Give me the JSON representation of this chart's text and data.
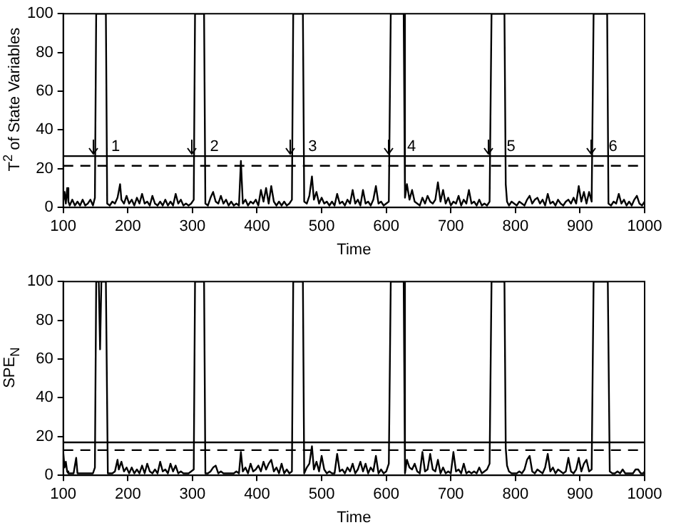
{
  "chart_data": [
    {
      "type": "line",
      "ylabel": "T$^{2}$ of State Variables",
      "xlabel": "Time",
      "xlim": [
        100,
        1000
      ],
      "ylim": [
        0,
        100
      ],
      "xticks": [
        100,
        200,
        300,
        400,
        500,
        600,
        700,
        800,
        900,
        1000
      ],
      "yticks": [
        0,
        20,
        40,
        60,
        80,
        100
      ],
      "x": [
        100,
        102,
        104,
        106,
        108,
        110,
        114,
        118,
        122,
        126,
        130,
        134,
        138,
        142,
        146,
        149,
        151,
        166,
        168,
        172,
        176,
        180,
        184,
        188,
        190,
        194,
        198,
        202,
        206,
        210,
        214,
        218,
        222,
        226,
        230,
        234,
        238,
        242,
        246,
        250,
        254,
        258,
        262,
        266,
        270,
        274,
        278,
        282,
        286,
        290,
        294,
        298,
        302,
        304,
        318,
        320,
        324,
        328,
        332,
        336,
        340,
        344,
        348,
        352,
        356,
        360,
        364,
        368,
        372,
        375,
        378,
        382,
        386,
        390,
        394,
        398,
        402,
        406,
        410,
        414,
        418,
        422,
        426,
        430,
        434,
        438,
        442,
        446,
        450,
        454,
        456,
        471,
        473,
        477,
        481,
        485,
        488,
        492,
        496,
        500,
        504,
        508,
        512,
        516,
        520,
        524,
        528,
        532,
        536,
        540,
        544,
        548,
        552,
        556,
        560,
        564,
        568,
        572,
        576,
        580,
        584,
        588,
        592,
        596,
        600,
        604,
        607,
        627,
        629,
        632,
        636,
        640,
        644,
        648,
        652,
        656,
        660,
        664,
        668,
        672,
        676,
        680,
        684,
        688,
        692,
        696,
        700,
        704,
        708,
        712,
        716,
        720,
        724,
        728,
        732,
        736,
        740,
        744,
        748,
        752,
        756,
        760,
        763,
        783,
        785,
        787,
        790,
        794,
        798,
        802,
        806,
        810,
        814,
        818,
        822,
        826,
        830,
        834,
        838,
        842,
        846,
        850,
        854,
        858,
        862,
        866,
        870,
        874,
        878,
        882,
        886,
        890,
        894,
        898,
        902,
        906,
        910,
        914,
        918,
        921,
        942,
        944,
        948,
        952,
        956,
        960,
        964,
        968,
        972,
        976,
        980,
        984,
        988,
        992,
        996,
        1000
      ],
      "series": [
        {
          "color": "#000000",
          "values": [
            3,
            8,
            2,
            10,
            3,
            1,
            4,
            1,
            3,
            1,
            4,
            1,
            2,
            4,
            1,
            5,
            100,
            100,
            2,
            1,
            3,
            2,
            5,
            12,
            4,
            2,
            6,
            2,
            4,
            1,
            5,
            2,
            7,
            2,
            3,
            1,
            6,
            2,
            1,
            3,
            1,
            4,
            1,
            3,
            1,
            7,
            2,
            4,
            1,
            2,
            1,
            2,
            4,
            100,
            100,
            2,
            1,
            5,
            8,
            3,
            2,
            6,
            2,
            4,
            1,
            3,
            1,
            2,
            1,
            24,
            2,
            4,
            1,
            3,
            2,
            4,
            1,
            9,
            3,
            10,
            2,
            11,
            3,
            1,
            3,
            1,
            3,
            1,
            2,
            4,
            100,
            100,
            3,
            2,
            6,
            16,
            4,
            8,
            2,
            5,
            2,
            3,
            1,
            3,
            1,
            7,
            2,
            3,
            1,
            4,
            2,
            9,
            2,
            4,
            1,
            9,
            2,
            3,
            1,
            4,
            11,
            2,
            3,
            1,
            2,
            3,
            100,
            100,
            5,
            12,
            4,
            9,
            3,
            2,
            1,
            5,
            2,
            6,
            3,
            2,
            4,
            13,
            3,
            9,
            2,
            5,
            1,
            3,
            2,
            6,
            1,
            4,
            2,
            9,
            2,
            3,
            1,
            4,
            1,
            2,
            1,
            3,
            100,
            100,
            12,
            3,
            1,
            3,
            2,
            1,
            3,
            2,
            1,
            4,
            6,
            2,
            4,
            5,
            2,
            4,
            1,
            7,
            2,
            3,
            1,
            4,
            2,
            1,
            3,
            4,
            2,
            5,
            2,
            11,
            3,
            8,
            2,
            8,
            3,
            100,
            100,
            2,
            1,
            3,
            2,
            7,
            2,
            4,
            1,
            3,
            1,
            4,
            6,
            2,
            1,
            3
          ]
        }
      ],
      "ref_lines": [
        {
          "axis": "y",
          "value": 26.5,
          "line_style": "solid"
        },
        {
          "axis": "y",
          "value": 21.5,
          "line_style": "dashed"
        }
      ],
      "annotations": [
        {
          "text": "1",
          "x": 150,
          "y": 26.5
        },
        {
          "text": "2",
          "x": 303,
          "y": 26.5
        },
        {
          "text": "3",
          "x": 455,
          "y": 26.5
        },
        {
          "text": "4",
          "x": 608,
          "y": 26.5
        },
        {
          "text": "5",
          "x": 762,
          "y": 26.5
        },
        {
          "text": "6",
          "x": 920,
          "y": 26.5
        }
      ]
    },
    {
      "type": "line",
      "ylabel": "SPE$_{N}$",
      "xlabel": "Time",
      "xlim": [
        100,
        1000
      ],
      "ylim": [
        0,
        100
      ],
      "xticks": [
        100,
        200,
        300,
        400,
        500,
        600,
        700,
        800,
        900,
        1000
      ],
      "yticks": [
        0,
        20,
        40,
        60,
        80,
        100
      ],
      "x": [
        100,
        102,
        104,
        106,
        108,
        112,
        116,
        120,
        122,
        126,
        130,
        134,
        138,
        142,
        146,
        149,
        151,
        155,
        157,
        159,
        166,
        169,
        172,
        176,
        180,
        184,
        186,
        190,
        194,
        198,
        202,
        206,
        210,
        214,
        218,
        222,
        226,
        230,
        234,
        238,
        242,
        246,
        250,
        254,
        258,
        262,
        266,
        270,
        274,
        278,
        282,
        286,
        290,
        294,
        298,
        302,
        304,
        318,
        320,
        324,
        328,
        332,
        336,
        340,
        344,
        348,
        352,
        356,
        360,
        364,
        368,
        372,
        375,
        378,
        382,
        386,
        390,
        394,
        398,
        402,
        406,
        410,
        414,
        418,
        422,
        426,
        430,
        434,
        438,
        442,
        446,
        450,
        454,
        456,
        471,
        473,
        477,
        481,
        485,
        488,
        492,
        496,
        500,
        504,
        508,
        512,
        516,
        520,
        524,
        528,
        532,
        536,
        540,
        544,
        548,
        552,
        556,
        560,
        564,
        568,
        572,
        576,
        580,
        584,
        588,
        592,
        596,
        600,
        604,
        607,
        627,
        629,
        632,
        636,
        640,
        644,
        648,
        652,
        656,
        660,
        664,
        668,
        672,
        676,
        680,
        684,
        688,
        692,
        696,
        700,
        704,
        708,
        712,
        716,
        720,
        724,
        728,
        732,
        736,
        740,
        744,
        748,
        752,
        756,
        760,
        763,
        783,
        785,
        787,
        790,
        794,
        798,
        802,
        806,
        810,
        814,
        818,
        822,
        826,
        830,
        834,
        838,
        842,
        846,
        850,
        854,
        858,
        862,
        866,
        870,
        874,
        878,
        882,
        886,
        890,
        894,
        898,
        902,
        906,
        910,
        914,
        918,
        921,
        943,
        946,
        950,
        954,
        958,
        962,
        966,
        970,
        974,
        978,
        982,
        986,
        990,
        994,
        998,
        1000
      ],
      "series": [
        {
          "color": "#000000",
          "values": [
            12,
            4,
            7,
            2,
            1,
            1,
            1,
            9,
            1,
            1,
            1,
            1,
            1,
            1,
            1,
            4,
            100,
            100,
            65,
            100,
            100,
            1,
            1,
            1,
            2,
            8,
            3,
            7,
            2,
            4,
            1,
            4,
            1,
            3,
            1,
            5,
            1,
            6,
            2,
            1,
            3,
            1,
            7,
            2,
            3,
            1,
            6,
            2,
            5,
            1,
            2,
            1,
            1,
            1,
            2,
            3,
            100,
            100,
            1,
            1,
            2,
            4,
            5,
            1,
            2,
            1,
            1,
            1,
            1,
            1,
            2,
            1,
            12,
            2,
            4,
            1,
            6,
            2,
            3,
            5,
            2,
            7,
            3,
            6,
            8,
            2,
            4,
            1,
            6,
            1,
            3,
            1,
            2,
            100,
            100,
            1,
            4,
            6,
            15,
            3,
            7,
            2,
            10,
            3,
            1,
            2,
            1,
            1,
            11,
            2,
            3,
            1,
            4,
            2,
            6,
            1,
            3,
            7,
            2,
            6,
            1,
            4,
            2,
            10,
            1,
            3,
            1,
            2,
            6,
            100,
            100,
            1,
            8,
            4,
            3,
            6,
            2,
            1,
            12,
            2,
            3,
            11,
            3,
            2,
            8,
            1,
            4,
            1,
            2,
            1,
            12,
            2,
            3,
            1,
            6,
            1,
            2,
            1,
            2,
            1,
            4,
            1,
            2,
            3,
            6,
            100,
            100,
            14,
            5,
            2,
            1,
            1,
            1,
            2,
            1,
            3,
            8,
            10,
            2,
            1,
            3,
            2,
            1,
            4,
            11,
            2,
            4,
            1,
            3,
            2,
            1,
            2,
            9,
            2,
            1,
            3,
            9,
            2,
            6,
            8,
            2,
            3,
            100,
            100,
            2,
            1,
            1,
            2,
            1,
            3,
            1,
            1,
            1,
            1,
            3,
            3,
            1,
            1,
            2
          ]
        }
      ],
      "ref_lines": [
        {
          "axis": "y",
          "value": 17,
          "line_style": "solid"
        },
        {
          "axis": "y",
          "value": 13,
          "line_style": "dashed"
        }
      ]
    }
  ]
}
